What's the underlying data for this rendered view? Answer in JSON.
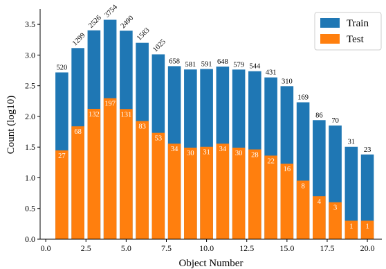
{
  "chart_data": {
    "type": "bar",
    "xlabel": "Object Number",
    "ylabel": "Count (log10)",
    "x": [
      1,
      2,
      3,
      4,
      5,
      6,
      7,
      8,
      9,
      10,
      11,
      12,
      13,
      14,
      15,
      16,
      17,
      18,
      19,
      20
    ],
    "series": [
      {
        "name": "Train",
        "color": "#1f77b4",
        "values": [
          2.7168,
          3.1139,
          3.4026,
          3.5746,
          3.3964,
          3.1998,
          3.0111,
          2.8189,
          2.7649,
          2.7723,
          2.8122,
          2.7634,
          2.7364,
          2.6355,
          2.4928,
          2.2304,
          1.9395,
          1.8513,
          1.5051,
          1.3802
        ],
        "value_labels": [
          "520",
          "1299",
          "2526",
          "3754",
          "2490",
          "1583",
          "1025",
          "658",
          "581",
          "591",
          "648",
          "579",
          "544",
          "431",
          "310",
          "169",
          "86",
          "70",
          "31",
          "23"
        ]
      },
      {
        "name": "Test",
        "color": "#ff7f0e",
        "values": [
          1.4472,
          1.8388,
          2.1239,
          2.2967,
          2.1206,
          1.9243,
          1.7324,
          1.5563,
          1.4914,
          1.5051,
          1.5563,
          1.4914,
          1.4624,
          1.3617,
          1.2304,
          0.9542,
          0.699,
          0.6021,
          0.301,
          0.301
        ],
        "value_labels": [
          "27",
          "68",
          "132",
          "197",
          "131",
          "83",
          "53",
          "34",
          "30",
          "31",
          "34",
          "30",
          "28",
          "22",
          "16",
          "8",
          "4",
          "3",
          "1",
          "1"
        ]
      }
    ],
    "xlim": [
      -0.35,
      20.9
    ],
    "xticks": [
      {
        "value": 0,
        "label": "0.0"
      },
      2.5,
      {
        "value": 5,
        "label": "5.0"
      },
      7.5,
      {
        "value": 10,
        "label": "10.0"
      },
      12.5,
      {
        "value": 15,
        "label": "15.0"
      },
      17.5,
      {
        "value": 20,
        "label": "20.0"
      }
    ],
    "ylim": [
      0,
      3.75
    ],
    "yticks": [
      {
        "value": 0,
        "label": "0.0"
      },
      0.5,
      {
        "value": 1,
        "label": "1.0"
      },
      1.5,
      {
        "value": 2,
        "label": "2.0"
      },
      2.5,
      {
        "value": 3,
        "label": "3.0"
      },
      3.5
    ],
    "legend": "upper right",
    "grid": false
  }
}
